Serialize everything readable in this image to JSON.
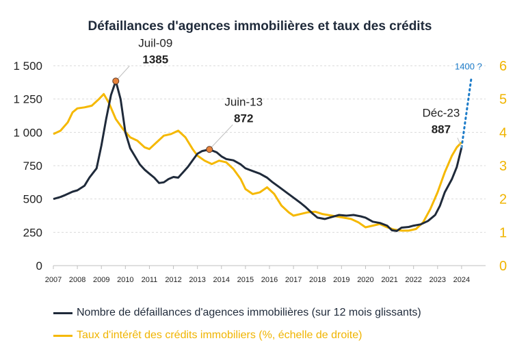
{
  "title": "Défaillances d'agences immobilières et taux des crédits",
  "colors": {
    "navy": "#1f2a3a",
    "gold": "#f5b800",
    "marker": "#e8823a",
    "projection": "#1a7ac8",
    "grid": "#d9d9d9"
  },
  "legend": [
    {
      "label": "Nombre de défaillances d'agences immobilières (sur 12 mois glissants)",
      "color": "#1f2a3a"
    },
    {
      "label": "Taux d'intérêt des crédits immobiliers (%, échelle de droite)",
      "color": "#f5b800"
    }
  ],
  "chart_data": {
    "type": "line",
    "title": "Défaillances d'agences immobilières et taux des crédits",
    "x_ticks": [
      "2007",
      "2008",
      "2009",
      "2010",
      "2011",
      "2012",
      "2013",
      "2014",
      "2015",
      "2016",
      "2017",
      "2018",
      "2019",
      "2020",
      "2021",
      "2022",
      "2023",
      "2024"
    ],
    "xlim": [
      2007,
      2025
    ],
    "y_left": {
      "range": [
        0,
        1500
      ],
      "ticks": [
        "0",
        "250",
        "500",
        "750",
        "1 000",
        "1 250",
        "1 500"
      ]
    },
    "y_right": {
      "range": [
        0,
        6
      ],
      "ticks": [
        "0",
        "1",
        "2",
        "3",
        "4",
        "5",
        "6"
      ]
    },
    "grid": true,
    "series": [
      {
        "name": "Nombre de défaillances d'agences immobilières (sur 12 mois glissants)",
        "axis": "left",
        "points": [
          [
            2007.0,
            500
          ],
          [
            2007.3,
            515
          ],
          [
            2007.5,
            530
          ],
          [
            2007.8,
            555
          ],
          [
            2008.0,
            565
          ],
          [
            2008.3,
            600
          ],
          [
            2008.5,
            660
          ],
          [
            2008.8,
            730
          ],
          [
            2009.0,
            900
          ],
          [
            2009.2,
            1100
          ],
          [
            2009.4,
            1280
          ],
          [
            2009.6,
            1385
          ],
          [
            2009.8,
            1250
          ],
          [
            2010.0,
            1000
          ],
          [
            2010.2,
            880
          ],
          [
            2010.4,
            820
          ],
          [
            2010.6,
            760
          ],
          [
            2010.8,
            720
          ],
          [
            2011.0,
            690
          ],
          [
            2011.2,
            660
          ],
          [
            2011.4,
            620
          ],
          [
            2011.6,
            625
          ],
          [
            2011.8,
            650
          ],
          [
            2012.0,
            665
          ],
          [
            2012.2,
            660
          ],
          [
            2012.4,
            700
          ],
          [
            2012.6,
            740
          ],
          [
            2012.8,
            790
          ],
          [
            2013.0,
            840
          ],
          [
            2013.2,
            860
          ],
          [
            2013.5,
            872
          ],
          [
            2013.8,
            850
          ],
          [
            2014.0,
            820
          ],
          [
            2014.2,
            800
          ],
          [
            2014.5,
            790
          ],
          [
            2014.8,
            760
          ],
          [
            2015.0,
            730
          ],
          [
            2015.3,
            710
          ],
          [
            2015.6,
            690
          ],
          [
            2015.9,
            660
          ],
          [
            2016.1,
            630
          ],
          [
            2016.4,
            590
          ],
          [
            2016.7,
            550
          ],
          [
            2017.0,
            510
          ],
          [
            2017.3,
            470
          ],
          [
            2017.5,
            440
          ],
          [
            2017.8,
            390
          ],
          [
            2018.0,
            360
          ],
          [
            2018.3,
            350
          ],
          [
            2018.6,
            365
          ],
          [
            2018.9,
            380
          ],
          [
            2019.2,
            375
          ],
          [
            2019.5,
            380
          ],
          [
            2019.8,
            370
          ],
          [
            2020.0,
            360
          ],
          [
            2020.3,
            330
          ],
          [
            2020.6,
            320
          ],
          [
            2020.9,
            300
          ],
          [
            2021.1,
            265
          ],
          [
            2021.3,
            260
          ],
          [
            2021.5,
            285
          ],
          [
            2021.8,
            290
          ],
          [
            2022.0,
            300
          ],
          [
            2022.3,
            310
          ],
          [
            2022.6,
            335
          ],
          [
            2022.9,
            380
          ],
          [
            2023.1,
            450
          ],
          [
            2023.3,
            550
          ],
          [
            2023.6,
            650
          ],
          [
            2023.8,
            740
          ],
          [
            2024.0,
            887
          ]
        ]
      },
      {
        "name": "Taux d'intérêt des crédits immobiliers (%, échelle de droite)",
        "axis": "right",
        "points": [
          [
            2007.0,
            3.95
          ],
          [
            2007.3,
            4.05
          ],
          [
            2007.6,
            4.3
          ],
          [
            2007.8,
            4.6
          ],
          [
            2008.0,
            4.72
          ],
          [
            2008.3,
            4.75
          ],
          [
            2008.6,
            4.8
          ],
          [
            2008.9,
            5.0
          ],
          [
            2009.1,
            5.15
          ],
          [
            2009.3,
            4.9
          ],
          [
            2009.6,
            4.4
          ],
          [
            2009.9,
            4.1
          ],
          [
            2010.2,
            3.85
          ],
          [
            2010.5,
            3.75
          ],
          [
            2010.8,
            3.55
          ],
          [
            2011.0,
            3.5
          ],
          [
            2011.3,
            3.7
          ],
          [
            2011.6,
            3.9
          ],
          [
            2011.9,
            3.95
          ],
          [
            2012.2,
            4.05
          ],
          [
            2012.5,
            3.85
          ],
          [
            2012.8,
            3.5
          ],
          [
            2013.0,
            3.3
          ],
          [
            2013.3,
            3.15
          ],
          [
            2013.6,
            3.05
          ],
          [
            2013.9,
            3.15
          ],
          [
            2014.2,
            3.1
          ],
          [
            2014.5,
            2.9
          ],
          [
            2014.8,
            2.6
          ],
          [
            2015.0,
            2.3
          ],
          [
            2015.3,
            2.15
          ],
          [
            2015.6,
            2.2
          ],
          [
            2015.9,
            2.35
          ],
          [
            2016.2,
            2.15
          ],
          [
            2016.5,
            1.8
          ],
          [
            2016.8,
            1.6
          ],
          [
            2017.0,
            1.5
          ],
          [
            2017.3,
            1.55
          ],
          [
            2017.6,
            1.6
          ],
          [
            2017.9,
            1.62
          ],
          [
            2018.2,
            1.55
          ],
          [
            2018.6,
            1.5
          ],
          [
            2019.0,
            1.45
          ],
          [
            2019.4,
            1.4
          ],
          [
            2019.7,
            1.3
          ],
          [
            2020.0,
            1.15
          ],
          [
            2020.3,
            1.2
          ],
          [
            2020.6,
            1.25
          ],
          [
            2020.9,
            1.15
          ],
          [
            2021.2,
            1.08
          ],
          [
            2021.5,
            1.05
          ],
          [
            2021.8,
            1.05
          ],
          [
            2022.1,
            1.1
          ],
          [
            2022.4,
            1.3
          ],
          [
            2022.7,
            1.7
          ],
          [
            2023.0,
            2.2
          ],
          [
            2023.3,
            2.8
          ],
          [
            2023.6,
            3.3
          ],
          [
            2023.8,
            3.55
          ],
          [
            2024.0,
            3.7
          ]
        ]
      }
    ],
    "projection": {
      "label": "1400 ?",
      "from": [
        2024.0,
        887
      ],
      "to": [
        2024.4,
        1400
      ]
    },
    "annotations": [
      {
        "date": "Juil-09",
        "value": "1385",
        "x": 2009.6,
        "y": 1385,
        "marker": true
      },
      {
        "date": "Juin-13",
        "value": "872",
        "x": 2013.5,
        "y": 872,
        "marker": true
      },
      {
        "date": "Déc-23",
        "value": "887",
        "x": 2024.0,
        "y": 887,
        "marker": false
      }
    ]
  }
}
